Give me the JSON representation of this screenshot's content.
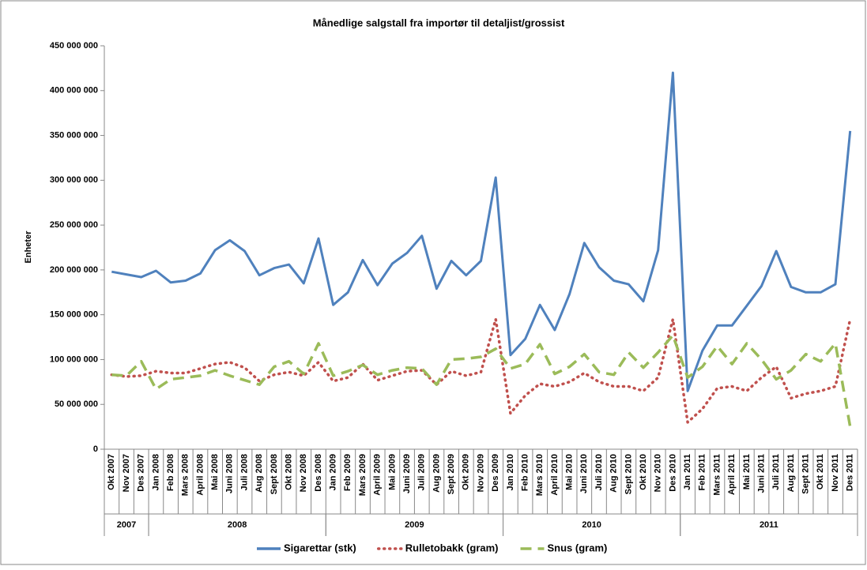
{
  "chart_data": {
    "type": "line",
    "title": "Månedlige salgstall fra importør til detaljist/grossist",
    "y_label": "Enheter",
    "categories": [
      "Okt 2007",
      "Nov 2007",
      "Des 2007",
      "Jan 2008",
      "Feb 2008",
      "Mars 2008",
      "April 2008",
      "Mai 2008",
      "Juni 2008",
      "Juli 2008",
      "Aug 2008",
      "Sept 2008",
      "Okt 2008",
      "Nov 2008",
      "Des 2008",
      "Jan 2009",
      "Feb 2009",
      "Mars 2009",
      "April 2009",
      "Mai 2009",
      "Juni 2009",
      "Juli 2009",
      "Aug 2009",
      "Sept 2009",
      "Okt 2009",
      "Nov 2009",
      "Des 2009",
      "Jan 2010",
      "Feb 2010",
      "Mars 2010",
      "April 2010",
      "Mai 2010",
      "Juni 2010",
      "Juli 2010",
      "Aug 2010",
      "Sept 2010",
      "Okt 2010",
      "Nov 2010",
      "Des 2010",
      "Jan 2011",
      "Feb 2011",
      "Mars 2011",
      "April 2011",
      "Mai 2011",
      "Juni 2011",
      "Juli 2011",
      "Aug 2011",
      "Sept 2011",
      "Okt 2011",
      "Nov 2011",
      "Des 2011"
    ],
    "year_groups": [
      "2007",
      "2008",
      "2009",
      "2010",
      "2011"
    ],
    "series": [
      {
        "name": "Sigarettar (stk)",
        "color": "#4f81bd",
        "style": "solid",
        "values": [
          198000000,
          195000000,
          192000000,
          199000000,
          186000000,
          188000000,
          196000000,
          222000000,
          233000000,
          221000000,
          194000000,
          202000000,
          206000000,
          185000000,
          235000000,
          161000000,
          175000000,
          211000000,
          183000000,
          207000000,
          219000000,
          238000000,
          179000000,
          210000000,
          194000000,
          210000000,
          303000000,
          105000000,
          123000000,
          161000000,
          133000000,
          173000000,
          230000000,
          203000000,
          188000000,
          184000000,
          165000000,
          222000000,
          420000000,
          65000000,
          110000000,
          138000000,
          138000000,
          160000000,
          182000000,
          221000000,
          181000000,
          175000000,
          175000000,
          184000000,
          355000000
        ]
      },
      {
        "name": "Rulletobakk (gram)",
        "color": "#c0504d",
        "style": "dotted",
        "values": [
          83000000,
          81000000,
          82000000,
          87000000,
          85000000,
          85000000,
          90000000,
          95000000,
          97000000,
          91000000,
          76000000,
          83000000,
          86000000,
          82000000,
          97000000,
          76000000,
          80000000,
          95000000,
          77000000,
          82000000,
          87000000,
          88000000,
          72000000,
          87000000,
          82000000,
          86000000,
          145000000,
          40000000,
          60000000,
          73000000,
          70000000,
          75000000,
          85000000,
          75000000,
          70000000,
          70000000,
          65000000,
          80000000,
          145000000,
          30000000,
          45000000,
          68000000,
          70000000,
          65000000,
          80000000,
          92000000,
          57000000,
          62000000,
          65000000,
          70000000,
          145000000
        ]
      },
      {
        "name": "Snus (gram)",
        "color": "#9bbb59",
        "style": "dashed",
        "values": [
          83000000,
          82000000,
          98000000,
          67000000,
          78000000,
          80000000,
          82000000,
          88000000,
          82000000,
          77000000,
          72000000,
          92000000,
          98000000,
          84000000,
          118000000,
          82000000,
          87000000,
          94000000,
          83000000,
          88000000,
          91000000,
          90000000,
          72000000,
          100000000,
          101000000,
          103000000,
          112000000,
          90000000,
          95000000,
          117000000,
          84000000,
          92000000,
          106000000,
          86000000,
          83000000,
          108000000,
          91000000,
          108000000,
          127000000,
          80000000,
          92000000,
          115000000,
          95000000,
          118000000,
          100000000,
          78000000,
          88000000,
          106000000,
          98000000,
          118000000,
          25000000
        ]
      }
    ],
    "ylim": [
      0,
      450000000
    ],
    "yticks": [
      0,
      {
        "value": 50000000,
        "label": "50 000 000"
      },
      {
        "value": 100000000,
        "label": "100 000 000"
      },
      {
        "value": 150000000,
        "label": "150 000 000"
      },
      {
        "value": 200000000,
        "label": "200 000 000"
      },
      {
        "value": 250000000,
        "label": "250 000 000"
      },
      {
        "value": 300000000,
        "label": "300 000 000"
      },
      {
        "value": 350000000,
        "label": "350 000 000"
      },
      {
        "value": 400000000,
        "label": "400 000 000"
      },
      {
        "value": 450000000,
        "label": "450 000 000"
      }
    ],
    "legend": "bottom"
  }
}
